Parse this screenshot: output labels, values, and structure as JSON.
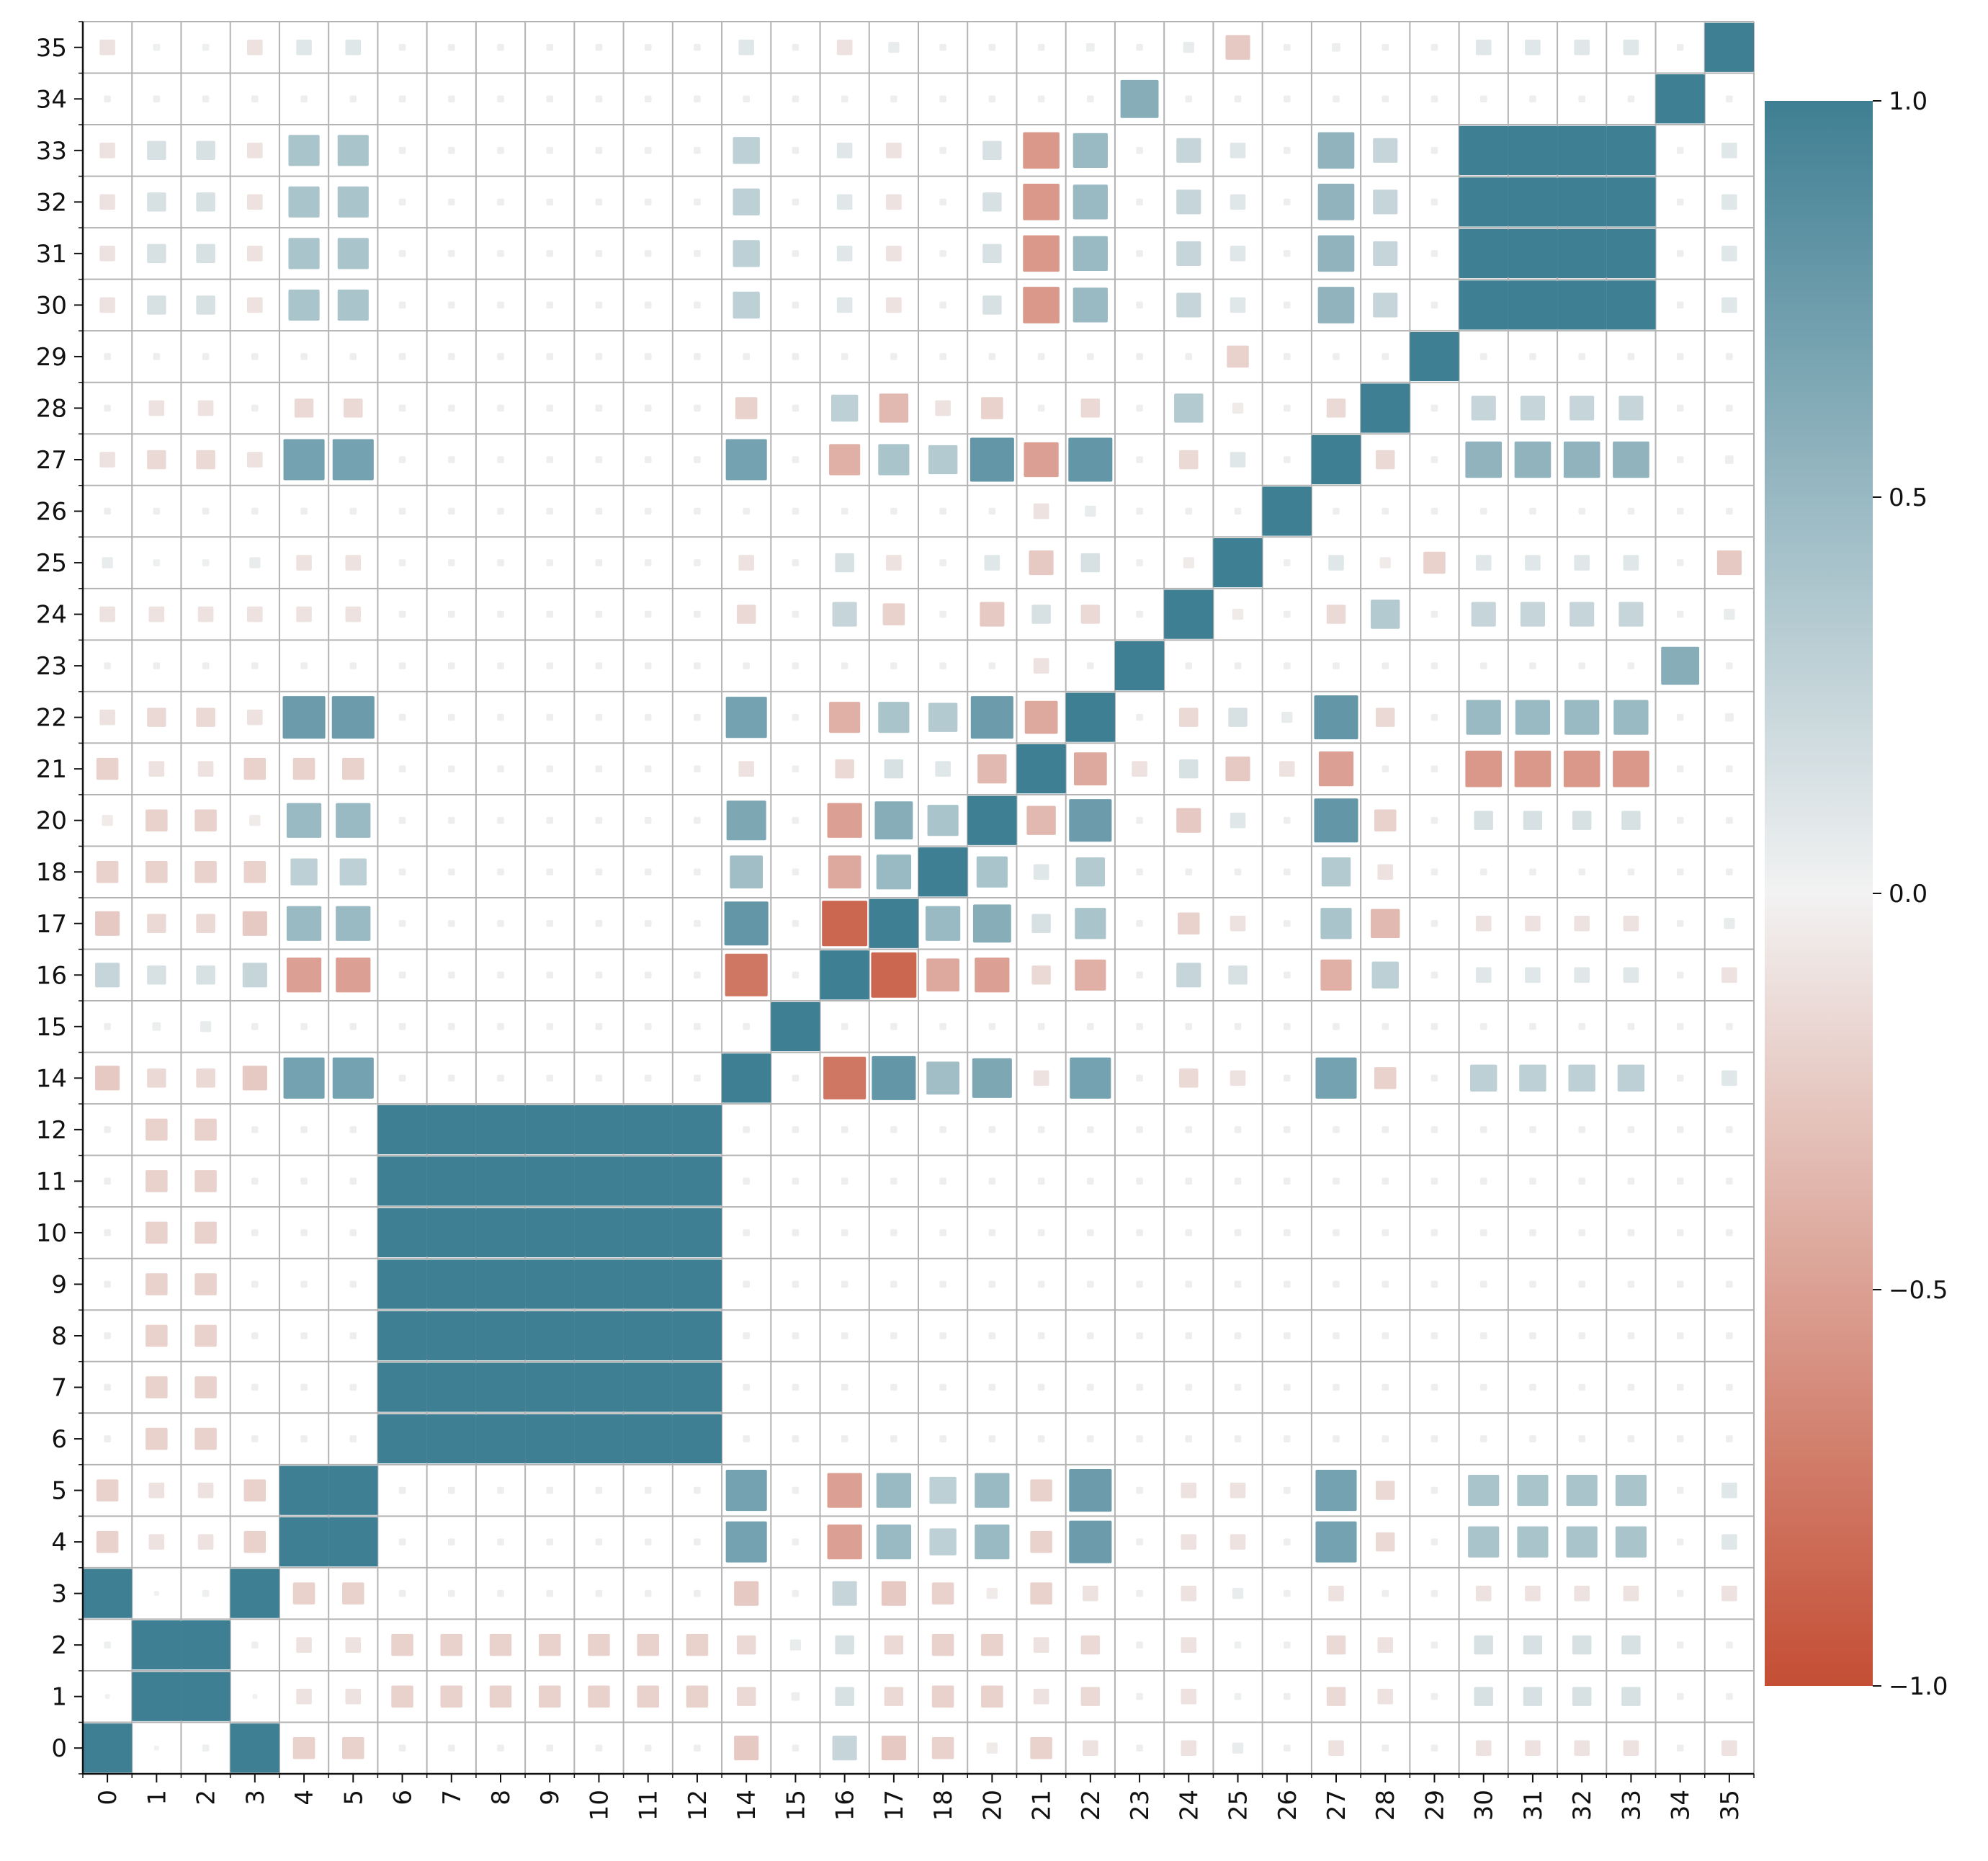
{
  "chart_data": {
    "type": "heatmap",
    "title": "",
    "xlabel": "",
    "ylabel": "",
    "grid": true,
    "cell_marker": "square sized by |value|, colored by value",
    "categories": [
      "0",
      "1",
      "2",
      "3",
      "4",
      "5",
      "6",
      "7",
      "8",
      "9",
      "10",
      "11",
      "12",
      "14",
      "15",
      "16",
      "17",
      "18",
      "20",
      "21",
      "22",
      "23",
      "24",
      "25",
      "26",
      "27",
      "28",
      "29",
      "30",
      "31",
      "32",
      "33",
      "34",
      "35"
    ],
    "x_tick_labels": [
      "0",
      "1",
      "2",
      "3",
      "4",
      "5",
      "6",
      "7",
      "8",
      "9",
      "10",
      "11",
      "12",
      "14",
      "15",
      "16",
      "17",
      "18",
      "20",
      "21",
      "22",
      "23",
      "24",
      "25",
      "26",
      "27",
      "28",
      "29",
      "30",
      "31",
      "32",
      "33",
      "34",
      "35"
    ],
    "y_tick_labels": [
      "0",
      "1",
      "2",
      "3",
      "4",
      "5",
      "6",
      "7",
      "8",
      "9",
      "10",
      "11",
      "12",
      "14",
      "15",
      "16",
      "17",
      "18",
      "20",
      "21",
      "22",
      "23",
      "24",
      "25",
      "26",
      "27",
      "28",
      "29",
      "30",
      "31",
      "32",
      "33",
      "34",
      "35"
    ],
    "colorbar": {
      "range": [
        -1.0,
        1.0
      ],
      "tick_values": [
        1.0,
        0.5,
        0.0,
        -0.5,
        -1.0
      ],
      "tick_labels": [
        "1.0",
        "0.5",
        "0.0",
        "−0.5",
        "−1.0"
      ],
      "color_negative": "#c44e34",
      "color_zero": "#f2f2f2",
      "color_positive": "#3f7f93"
    },
    "colors": {
      "grid_line": "#b3b3b3",
      "background": "#ffffff",
      "axis": "#111111"
    },
    "matrix": [
      [
        1,
        0.01,
        0.02,
        1,
        -0.2,
        -0.2,
        0,
        0,
        0,
        0,
        0,
        0,
        0,
        -0.25,
        0,
        0.25,
        -0.25,
        -0.2,
        -0.05,
        -0.2,
        -0.1,
        0,
        -0.1,
        0.05,
        0,
        -0.1,
        0,
        0,
        -0.1,
        -0.1,
        -0.1,
        -0.1,
        0,
        -0.1
      ],
      [
        0.01,
        1,
        1,
        0.01,
        -0.1,
        -0.1,
        -0.2,
        -0.2,
        -0.2,
        -0.2,
        -0.2,
        -0.2,
        -0.2,
        -0.15,
        0.03,
        0.15,
        -0.15,
        -0.2,
        -0.2,
        -0.1,
        -0.15,
        0,
        -0.1,
        0.02,
        0,
        -0.15,
        -0.1,
        0,
        0.15,
        0.15,
        0.15,
        0.15,
        0,
        0.02
      ],
      [
        0.02,
        1,
        1,
        0.02,
        -0.1,
        -0.1,
        -0.2,
        -0.2,
        -0.2,
        -0.2,
        -0.2,
        -0.2,
        -0.2,
        -0.15,
        0.05,
        0.15,
        -0.15,
        -0.2,
        -0.2,
        -0.1,
        -0.15,
        0,
        -0.1,
        0.02,
        0,
        -0.15,
        -0.1,
        0,
        0.15,
        0.15,
        0.15,
        0.15,
        0,
        0.02
      ],
      [
        1,
        0.01,
        0.02,
        1,
        -0.2,
        -0.2,
        0,
        0,
        0,
        0,
        0,
        0,
        0,
        -0.25,
        0,
        0.25,
        -0.25,
        -0.2,
        -0.05,
        -0.2,
        -0.1,
        0,
        -0.1,
        0.05,
        0,
        -0.1,
        0,
        0,
        -0.1,
        -0.1,
        -0.1,
        -0.1,
        0,
        -0.1
      ],
      [
        -0.2,
        -0.1,
        -0.1,
        -0.2,
        1,
        1,
        0,
        0,
        0,
        0,
        0,
        0,
        0,
        0.7,
        0,
        -0.5,
        0.5,
        0.3,
        0.5,
        -0.2,
        0.75,
        0,
        -0.1,
        -0.1,
        0,
        0.7,
        -0.15,
        0,
        0.4,
        0.4,
        0.4,
        0.4,
        0,
        0.1
      ],
      [
        -0.2,
        -0.1,
        -0.1,
        -0.2,
        1,
        1,
        0,
        0,
        0,
        0,
        0,
        0,
        0,
        0.7,
        0,
        -0.5,
        0.5,
        0.3,
        0.5,
        -0.2,
        0.75,
        0,
        -0.1,
        -0.1,
        0,
        0.7,
        -0.15,
        0,
        0.4,
        0.4,
        0.4,
        0.4,
        0,
        0.1
      ],
      [
        0,
        -0.2,
        -0.2,
        0,
        0,
        0,
        1,
        1,
        1,
        1,
        1,
        1,
        1,
        0,
        0,
        0,
        0,
        0,
        0,
        0,
        0,
        0,
        0,
        0,
        0,
        0,
        0,
        0,
        0,
        0,
        0,
        0,
        0,
        0
      ],
      [
        0,
        -0.2,
        -0.2,
        0,
        0,
        0,
        1,
        1,
        1,
        1,
        1,
        1,
        1,
        0,
        0,
        0,
        0,
        0,
        0,
        0,
        0,
        0,
        0,
        0,
        0,
        0,
        0,
        0,
        0,
        0,
        0,
        0,
        0,
        0
      ],
      [
        0,
        -0.2,
        -0.2,
        0,
        0,
        0,
        1,
        1,
        1,
        1,
        1,
        1,
        1,
        0,
        0,
        0,
        0,
        0,
        0,
        0,
        0,
        0,
        0,
        0,
        0,
        0,
        0,
        0,
        0,
        0,
        0,
        0,
        0,
        0
      ],
      [
        0,
        -0.2,
        -0.2,
        0,
        0,
        0,
        1,
        1,
        1,
        1,
        1,
        1,
        1,
        0,
        0,
        0,
        0,
        0,
        0,
        0,
        0,
        0,
        0,
        0,
        0,
        0,
        0,
        0,
        0,
        0,
        0,
        0,
        0,
        0
      ],
      [
        0,
        -0.2,
        -0.2,
        0,
        0,
        0,
        1,
        1,
        1,
        1,
        1,
        1,
        1,
        0,
        0,
        0,
        0,
        0,
        0,
        0,
        0,
        0,
        0,
        0,
        0,
        0,
        0,
        0,
        0,
        0,
        0,
        0,
        0,
        0
      ],
      [
        0,
        -0.2,
        -0.2,
        0,
        0,
        0,
        1,
        1,
        1,
        1,
        1,
        1,
        1,
        0,
        0,
        0,
        0,
        0,
        0,
        0,
        0,
        0,
        0,
        0,
        0,
        0,
        0,
        0,
        0,
        0,
        0,
        0,
        0,
        0
      ],
      [
        0,
        -0.2,
        -0.2,
        0,
        0,
        0,
        1,
        1,
        1,
        1,
        1,
        1,
        1,
        0,
        0,
        0,
        0,
        0,
        0,
        0,
        0,
        0,
        0,
        0,
        0,
        0,
        0,
        0,
        0,
        0,
        0,
        0,
        0,
        0
      ],
      [
        -0.25,
        -0.15,
        -0.15,
        -0.25,
        0.7,
        0.7,
        0,
        0,
        0,
        0,
        0,
        0,
        0,
        1,
        0,
        -0.75,
        0.8,
        0.45,
        0.65,
        -0.1,
        0.7,
        0,
        -0.15,
        -0.1,
        0,
        0.7,
        -0.2,
        0,
        0.3,
        0.3,
        0.3,
        0.3,
        0,
        0.1
      ],
      [
        0,
        0.03,
        0.05,
        0,
        0,
        0,
        0,
        0,
        0,
        0,
        0,
        0,
        0,
        0,
        1,
        0,
        0,
        0,
        0,
        0,
        0,
        0,
        0,
        0,
        0,
        0,
        0,
        0,
        0,
        0,
        0,
        0,
        0,
        0
      ],
      [
        0.25,
        0.15,
        0.15,
        0.25,
        -0.5,
        -0.5,
        0,
        0,
        0,
        0,
        0,
        0,
        0,
        -0.75,
        0,
        1,
        -0.85,
        -0.45,
        -0.5,
        -0.15,
        -0.4,
        0,
        0.25,
        0.15,
        0,
        -0.4,
        0.3,
        0,
        0.1,
        0.1,
        0.1,
        0.1,
        0,
        -0.1
      ],
      [
        -0.25,
        -0.15,
        -0.15,
        -0.25,
        0.5,
        0.5,
        0,
        0,
        0,
        0,
        0,
        0,
        0,
        0.8,
        0,
        -0.85,
        1,
        0.5,
        0.6,
        0.15,
        0.4,
        0,
        -0.2,
        -0.1,
        0,
        0.4,
        -0.35,
        0,
        -0.1,
        -0.1,
        -0.1,
        -0.1,
        0,
        0.05
      ],
      [
        -0.2,
        -0.2,
        -0.2,
        -0.2,
        0.3,
        0.3,
        0,
        0,
        0,
        0,
        0,
        0,
        0,
        0.45,
        0,
        -0.45,
        0.5,
        1,
        0.4,
        0.1,
        0.35,
        0,
        0,
        0,
        0,
        0.35,
        -0.1,
        0,
        0,
        0,
        0,
        0,
        0,
        0
      ],
      [
        -0.05,
        -0.2,
        -0.2,
        -0.05,
        0.5,
        0.5,
        0,
        0,
        0,
        0,
        0,
        0,
        0,
        0.65,
        0,
        -0.5,
        0.6,
        0.4,
        1,
        -0.35,
        0.75,
        0,
        -0.25,
        0.1,
        0,
        0.8,
        -0.2,
        0,
        0.15,
        0.15,
        0.15,
        0.15,
        0,
        0
      ],
      [
        -0.2,
        -0.1,
        -0.1,
        -0.2,
        -0.2,
        -0.2,
        0,
        0,
        0,
        0,
        0,
        0,
        0,
        -0.1,
        0,
        -0.15,
        0.15,
        0.1,
        -0.35,
        1,
        -0.45,
        -0.1,
        0.15,
        -0.25,
        -0.1,
        -0.5,
        0,
        0,
        -0.55,
        -0.55,
        -0.55,
        -0.55,
        0,
        0
      ],
      [
        -0.1,
        -0.15,
        -0.15,
        -0.1,
        0.75,
        0.75,
        0,
        0,
        0,
        0,
        0,
        0,
        0,
        0.7,
        0,
        -0.4,
        0.4,
        0.35,
        0.75,
        -0.45,
        1,
        0,
        -0.15,
        0.15,
        0.05,
        0.8,
        -0.15,
        0,
        0.5,
        0.5,
        0.5,
        0.5,
        0,
        0.03
      ],
      [
        0,
        0,
        0,
        0,
        0,
        0,
        0,
        0,
        0,
        0,
        0,
        0,
        0,
        0,
        0,
        0,
        0,
        0,
        0,
        -0.1,
        0,
        1,
        0,
        0,
        0,
        0,
        0,
        0,
        0,
        0,
        0,
        0,
        0.6,
        0
      ],
      [
        -0.1,
        -0.1,
        -0.1,
        -0.1,
        -0.1,
        -0.1,
        0,
        0,
        0,
        0,
        0,
        0,
        0,
        -0.15,
        0,
        0.25,
        -0.2,
        0,
        -0.25,
        0.15,
        -0.15,
        0,
        1,
        -0.05,
        0,
        -0.15,
        0.35,
        0,
        0.25,
        0.25,
        0.25,
        0.25,
        0,
        0.05
      ],
      [
        0.05,
        0.02,
        0.02,
        0.05,
        -0.1,
        -0.1,
        0,
        0,
        0,
        0,
        0,
        0,
        0,
        -0.1,
        0,
        0.15,
        -0.1,
        0,
        0.1,
        -0.25,
        0.15,
        0,
        -0.05,
        1,
        0,
        0.1,
        -0.05,
        -0.2,
        0.1,
        0.1,
        0.1,
        0.1,
        0,
        -0.25
      ],
      [
        0,
        0,
        0,
        0,
        0,
        0,
        0,
        0,
        0,
        0,
        0,
        0,
        0,
        0,
        0,
        0,
        0,
        0,
        0,
        -0.1,
        0.05,
        0,
        0,
        0,
        1,
        0,
        0,
        0,
        0,
        0,
        0,
        0,
        0,
        0
      ],
      [
        -0.1,
        -0.15,
        -0.15,
        -0.1,
        0.7,
        0.7,
        0,
        0,
        0,
        0,
        0,
        0,
        0,
        0.7,
        0,
        -0.4,
        0.4,
        0.35,
        0.8,
        -0.5,
        0.8,
        0,
        -0.15,
        0.1,
        0,
        1,
        -0.15,
        0,
        0.55,
        0.55,
        0.55,
        0.55,
        0,
        0.03
      ],
      [
        0,
        -0.1,
        -0.1,
        0,
        -0.15,
        -0.15,
        0,
        0,
        0,
        0,
        0,
        0,
        0,
        -0.2,
        0,
        0.3,
        -0.35,
        -0.1,
        -0.2,
        0,
        -0.15,
        0,
        0.35,
        -0.05,
        0,
        -0.15,
        1,
        0,
        0.25,
        0.25,
        0.25,
        0.25,
        0,
        0
      ],
      [
        0,
        0,
        0,
        0,
        0,
        0,
        0,
        0,
        0,
        0,
        0,
        0,
        0,
        0,
        0,
        0,
        0,
        0,
        0,
        0,
        0,
        0,
        0,
        -0.2,
        0,
        0,
        0,
        1,
        0,
        0,
        0,
        0,
        0,
        0
      ],
      [
        -0.1,
        0.15,
        0.15,
        -0.1,
        0.4,
        0.4,
        0,
        0,
        0,
        0,
        0,
        0,
        0,
        0.3,
        0,
        0.1,
        -0.1,
        0,
        0.15,
        -0.55,
        0.5,
        0,
        0.25,
        0.1,
        0,
        0.55,
        0.25,
        0,
        1,
        1,
        1,
        1,
        0,
        0.1
      ],
      [
        -0.1,
        0.15,
        0.15,
        -0.1,
        0.4,
        0.4,
        0,
        0,
        0,
        0,
        0,
        0,
        0,
        0.3,
        0,
        0.1,
        -0.1,
        0,
        0.15,
        -0.55,
        0.5,
        0,
        0.25,
        0.1,
        0,
        0.55,
        0.25,
        0,
        1,
        1,
        1,
        1,
        0,
        0.1
      ],
      [
        -0.1,
        0.15,
        0.15,
        -0.1,
        0.4,
        0.4,
        0,
        0,
        0,
        0,
        0,
        0,
        0,
        0.3,
        0,
        0.1,
        -0.1,
        0,
        0.15,
        -0.55,
        0.5,
        0,
        0.25,
        0.1,
        0,
        0.55,
        0.25,
        0,
        1,
        1,
        1,
        1,
        0,
        0.1
      ],
      [
        -0.1,
        0.15,
        0.15,
        -0.1,
        0.4,
        0.4,
        0,
        0,
        0,
        0,
        0,
        0,
        0,
        0.3,
        0,
        0.1,
        -0.1,
        0,
        0.15,
        -0.55,
        0.5,
        0,
        0.25,
        0.1,
        0,
        0.55,
        0.25,
        0,
        1,
        1,
        1,
        1,
        0,
        0.1
      ],
      [
        0,
        0,
        0,
        0,
        0,
        0,
        0,
        0,
        0,
        0,
        0,
        0,
        0,
        0,
        0,
        0,
        0,
        0,
        0,
        0,
        0,
        0.6,
        0,
        0,
        0,
        0,
        0,
        0,
        0,
        0,
        0,
        0,
        1,
        0
      ],
      [
        -0.1,
        0.02,
        0.02,
        -0.1,
        0.1,
        0.1,
        0,
        0,
        0,
        0,
        0,
        0,
        0,
        0.1,
        0,
        -0.1,
        0.05,
        0,
        0,
        0,
        0.03,
        0,
        0.05,
        -0.25,
        0,
        0.03,
        0,
        0,
        0.1,
        0.1,
        0.1,
        0.1,
        0,
        1
      ]
    ]
  }
}
